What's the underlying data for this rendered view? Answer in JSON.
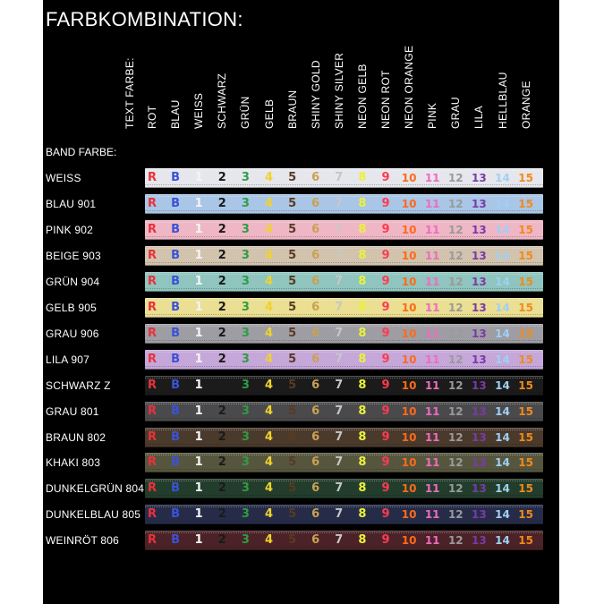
{
  "title": "FARBKOMBINATION:",
  "text_farbe_label": "TEXT FARBE:",
  "band_farbe_label": "BAND FARBE:",
  "text_colors": [
    {
      "name": "ROT",
      "color": "#e8323c"
    },
    {
      "name": "BLAU",
      "color": "#3b52d6"
    },
    {
      "name": "WEISS",
      "color": "#f4f4f4"
    },
    {
      "name": "SCHWARZ",
      "color": "#1a1a1a"
    },
    {
      "name": "GRÜN",
      "color": "#2f9c45"
    },
    {
      "name": "GELB",
      "color": "#f1d22b"
    },
    {
      "name": "BRAUN",
      "color": "#5a3a22"
    },
    {
      "name": "SHINY GOLD",
      "color": "#caa054"
    },
    {
      "name": "SHINY SILVER",
      "color": "#c7c7c7"
    },
    {
      "name": "NEON GELB",
      "color": "#eaf23a"
    },
    {
      "name": "NEON ROT",
      "color": "#ff3b50"
    },
    {
      "name": "NEON ORANGE",
      "color": "#ff6a1a"
    },
    {
      "name": "PINK",
      "color": "#f06ac0"
    },
    {
      "name": "GRAU",
      "color": "#9a9a9a"
    },
    {
      "name": "LILA",
      "color": "#7a3aa8"
    },
    {
      "name": "HELLBLAU",
      "color": "#9fd0f5"
    },
    {
      "name": "ORANGE",
      "color": "#f28a1a"
    }
  ],
  "glyphs": [
    "R",
    "B",
    "1",
    "2",
    "3",
    "4",
    "5",
    "6",
    "7",
    "8",
    "9",
    "10",
    "11",
    "12",
    "13",
    "14",
    "15"
  ],
  "bands": [
    {
      "label": "WEISS",
      "color": "#e6e7ec"
    },
    {
      "label": "BLAU 901",
      "color": "#a9c6e6"
    },
    {
      "label": "PINK 902",
      "color": "#efb7c6"
    },
    {
      "label": "BEIGE 903",
      "color": "#d2c3ae"
    },
    {
      "label": "GRÜN 904",
      "color": "#8fc5be"
    },
    {
      "label": "GELB 905",
      "color": "#eadf92"
    },
    {
      "label": "GRAU 906",
      "color": "#9d9da3"
    },
    {
      "label": "LILA 907",
      "color": "#c5a7d9"
    },
    {
      "label": "SCHWARZ Z",
      "color": "#1b1b1b"
    },
    {
      "label": "GRAU 801",
      "color": "#4a4a4c"
    },
    {
      "label": "BRAUN 802",
      "color": "#4a3a2c"
    },
    {
      "label": "KHAKI 803",
      "color": "#56563f"
    },
    {
      "label": "DUNKELGRÜN 804",
      "color": "#233d2c"
    },
    {
      "label": "DUNKELBLAU 805",
      "color": "#262c48"
    },
    {
      "label": "WEINRÖT 806",
      "color": "#4a2227"
    }
  ]
}
